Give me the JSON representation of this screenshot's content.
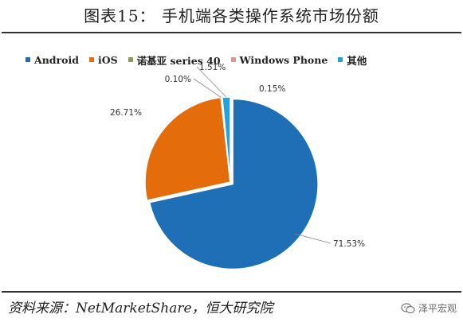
{
  "title": "图表15： 手机端各类操作系统市场份额",
  "source": "资料来源：NetMarketShare，恒大研究院",
  "watermark": "泽平宏观",
  "chart_data": {
    "type": "pie",
    "title": "",
    "legend_position": "top",
    "series": [
      {
        "name": "Android",
        "value": 71.53,
        "label": "71.53%",
        "color": "#1e6fb5"
      },
      {
        "name": "iOS",
        "value": 26.71,
        "label": "26.71%",
        "color": "#e46c0a"
      },
      {
        "name": "诺基亚 series 40",
        "value": 0.1,
        "label": "0.10%",
        "color": "#8a9a5b"
      },
      {
        "name": "Windows Phone",
        "value": 0.15,
        "label": "0.15%",
        "color": "#d99694"
      },
      {
        "name": "其他",
        "value": 1.51,
        "label": "1.51%",
        "color": "#23a3dc"
      }
    ]
  }
}
